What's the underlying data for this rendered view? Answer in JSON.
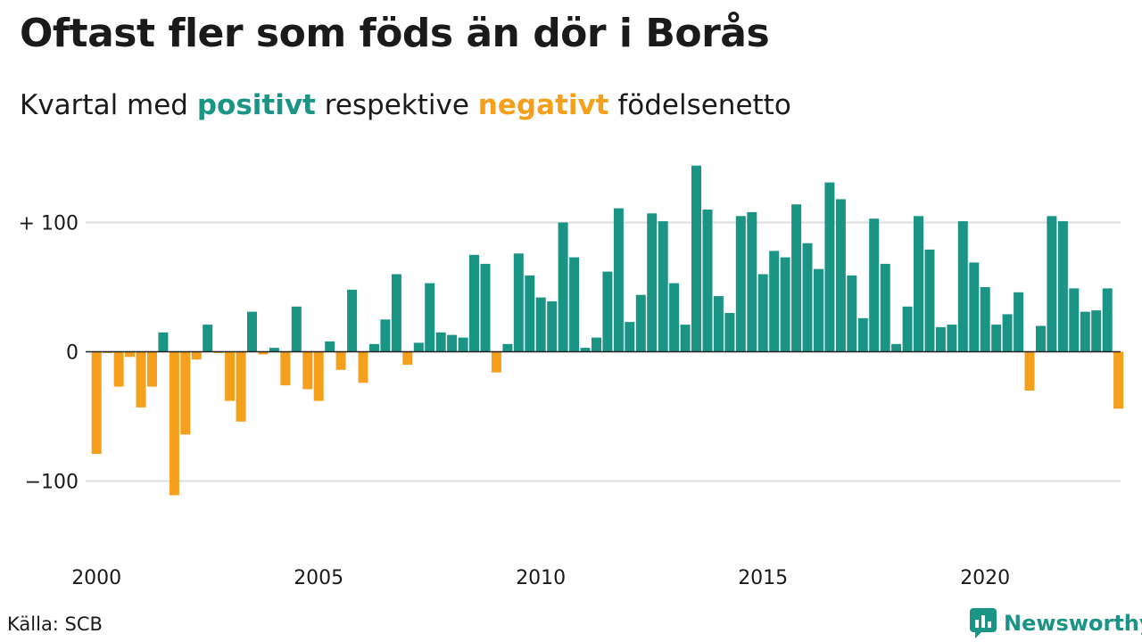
{
  "title": "Oftast fler som föds än dör i Borås",
  "subtitle": {
    "prefix": "Kvartal med",
    "positive_word": "positivt",
    "middle": "respektive",
    "negative_word": "negativt",
    "suffix": "födelsenetto"
  },
  "source": "Källa: SCB",
  "brand": {
    "name": "Newsworthy",
    "icon": "bar-chart-speech-bubble-icon"
  },
  "colors": {
    "positive": "#1a9585",
    "negative": "#f5a01c",
    "grid": "#dddddd",
    "zero_line": "#222222"
  },
  "chart_data": {
    "type": "bar",
    "title": "Oftast fler som föds än dör i Borås",
    "subtitle": "Kvartal med positivt respektive negativt födelsenetto",
    "x_start": 2000,
    "periods_per_year": 4,
    "xticks": [
      "2000",
      "2005",
      "2010",
      "2015",
      "2020"
    ],
    "yticks": [
      {
        "value": 100,
        "label": "+ 100"
      },
      {
        "value": 0,
        "label": "0"
      },
      {
        "value": -100,
        "label": "−100"
      }
    ],
    "ylim": [
      -135,
      150
    ],
    "grid": true,
    "values": [
      -79,
      -1,
      -27,
      -4,
      -43,
      -27,
      15,
      -111,
      -64,
      -6,
      21,
      -1,
      -38,
      -54,
      31,
      -2,
      3,
      -26,
      35,
      -29,
      -38,
      8,
      -14,
      48,
      -24,
      6,
      25,
      60,
      -10,
      7,
      53,
      15,
      13,
      11,
      75,
      68,
      -16,
      6,
      76,
      59,
      42,
      39,
      100,
      73,
      3,
      11,
      62,
      111,
      23,
      44,
      107,
      101,
      53,
      21,
      144,
      110,
      43,
      30,
      105,
      108,
      60,
      78,
      73,
      114,
      84,
      64,
      131,
      118,
      59,
      26,
      103,
      68,
      6,
      35,
      105,
      79,
      19,
      21,
      101,
      69,
      50,
      21,
      29,
      46,
      -30,
      20,
      105,
      101,
      49,
      31,
      32,
      49,
      -44
    ]
  }
}
